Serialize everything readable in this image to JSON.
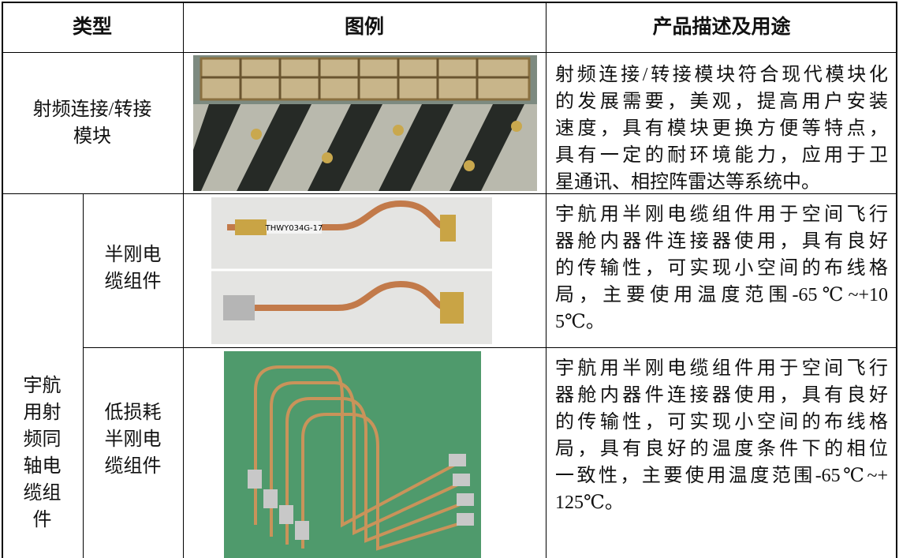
{
  "table": {
    "header": [
      "类型",
      "图例",
      "产品描述及用途"
    ],
    "group": [
      "宇航",
      "用射",
      "频同",
      "轴电",
      "缆组",
      "件"
    ],
    "rows": [
      {
        "type": [
          "射频连接/转接",
          "模块"
        ],
        "description": [
          "射频连接/转接模块符合现代模块化",
          "的发展需要，美观，提高用户安装",
          "速度，具有模块更换方便等特点，",
          "具有一定的耐环境能力，应用于卫",
          "星通讯、相控阵雷达等系统中。"
        ]
      },
      {
        "type": [
          "半刚电",
          "缆组件"
        ],
        "image_text": "THWY034G-17",
        "description": [
          "宇航用半刚电缆组件用于空间飞行",
          "器舱内器件连接器使用，具有良好",
          "的传输性，可实现小空间的布线格",
          "局，主要使用温度范围-65℃~+10",
          "5℃。"
        ]
      },
      {
        "type": [
          "低损耗",
          "半刚电",
          "缆组件"
        ],
        "description": [
          "宇航用半刚电缆组件用于空间飞行",
          "器舱内器件连接器使用，具有良好",
          "的传输性，可实现小空间的布线格",
          "局，具有良好的温度条件下的相位",
          "一致性，主要使用温度范围-65℃~+",
          "125℃。"
        ]
      }
    ]
  }
}
